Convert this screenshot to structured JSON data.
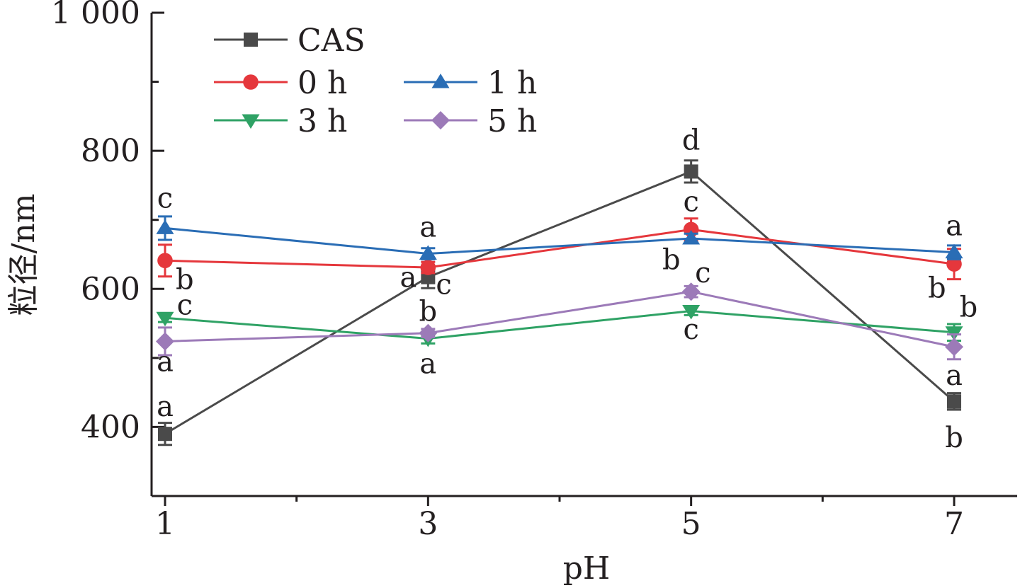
{
  "chart_data": {
    "type": "line",
    "title": "",
    "xlabel": "pH",
    "ylabel": "粒径/nm",
    "x": [
      1,
      3,
      5,
      7
    ],
    "x_tick_labels": [
      "1",
      "3",
      "5",
      "7"
    ],
    "ylim": [
      300,
      1000
    ],
    "y_ticks": [
      400,
      600,
      800,
      1000
    ],
    "y_tick_labels": [
      "400",
      "600",
      "800",
      "1 000"
    ],
    "grid": false,
    "legend_position": "top-left",
    "series": [
      {
        "name": "CAS",
        "color": "#4a4a4a",
        "marker": "square",
        "values": [
          390,
          617,
          770,
          437
        ],
        "errors": [
          16,
          16,
          16,
          12
        ]
      },
      {
        "name": "0 h",
        "color": "#e5373c",
        "marker": "circle",
        "values": [
          641,
          631,
          686,
          636
        ],
        "errors": [
          23,
          8,
          16,
          22
        ]
      },
      {
        "name": "1 h",
        "color": "#2a6db5",
        "marker": "triangle-up",
        "values": [
          688,
          651,
          673,
          653
        ],
        "errors": [
          17,
          8,
          7,
          10
        ]
      },
      {
        "name": "3 h",
        "color": "#2fa265",
        "marker": "triangle-down",
        "values": [
          558,
          528,
          568,
          537
        ],
        "errors": [
          6,
          7,
          6,
          12
        ]
      },
      {
        "name": "5 h",
        "color": "#9c7ab8",
        "marker": "diamond",
        "values": [
          524,
          536,
          596,
          516
        ],
        "errors": [
          20,
          6,
          8,
          18
        ]
      }
    ],
    "annotations": [
      {
        "text": "c",
        "x": 1,
        "y": 730
      },
      {
        "text": "b",
        "x": 1.15,
        "y": 612
      },
      {
        "text": "c",
        "x": 1.15,
        "y": 575
      },
      {
        "text": "a",
        "x": 1,
        "y": 493
      },
      {
        "text": "a",
        "x": 1,
        "y": 428
      },
      {
        "text": "a",
        "x": 3,
        "y": 688
      },
      {
        "text": "a",
        "x": 2.85,
        "y": 615
      },
      {
        "text": "c",
        "x": 3.12,
        "y": 605
      },
      {
        "text": "b",
        "x": 3,
        "y": 566
      },
      {
        "text": "a",
        "x": 3,
        "y": 490
      },
      {
        "text": "d",
        "x": 5,
        "y": 814
      },
      {
        "text": "c",
        "x": 5,
        "y": 725
      },
      {
        "text": "b",
        "x": 4.85,
        "y": 641
      },
      {
        "text": "c",
        "x": 5.09,
        "y": 622
      },
      {
        "text": "c",
        "x": 5,
        "y": 540
      },
      {
        "text": "a",
        "x": 7,
        "y": 690
      },
      {
        "text": "b",
        "x": 6.87,
        "y": 600
      },
      {
        "text": "b",
        "x": 7.11,
        "y": 572
      },
      {
        "text": "a",
        "x": 7,
        "y": 473
      },
      {
        "text": "b",
        "x": 7,
        "y": 383
      }
    ]
  }
}
